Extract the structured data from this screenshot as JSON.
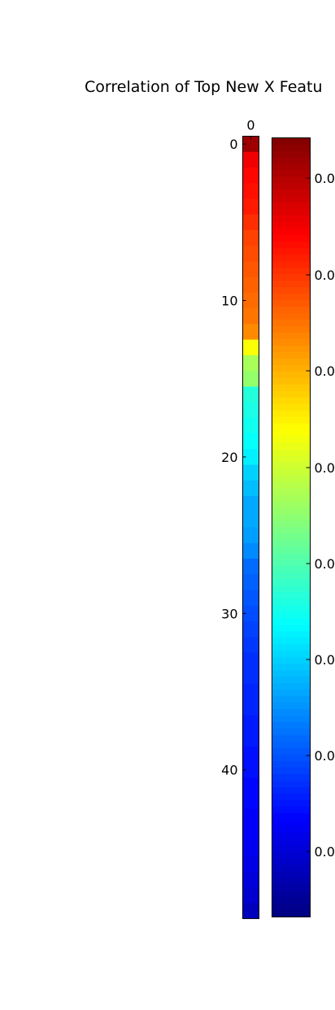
{
  "chart_data": {
    "type": "heatmap",
    "title": "Correlation of Top New X Featu",
    "x_tick_labels": [
      "0"
    ],
    "y_tick_values": [
      0,
      10,
      20,
      30,
      40
    ],
    "y_tick_labels": [
      "0",
      "10",
      "20",
      "30",
      "40"
    ],
    "ylim": [
      0,
      49
    ],
    "colormap": "jet",
    "cell_levels": [
      0.97,
      0.89,
      0.87,
      0.86,
      0.85,
      0.83,
      0.81,
      0.8,
      0.79,
      0.78,
      0.77,
      0.76,
      0.74,
      0.62,
      0.54,
      0.52,
      0.41,
      0.4,
      0.39,
      0.38,
      0.36,
      0.33,
      0.31,
      0.29,
      0.29,
      0.28,
      0.26,
      0.23,
      0.22,
      0.21,
      0.2,
      0.19,
      0.18,
      0.17,
      0.17,
      0.16,
      0.16,
      0.15,
      0.15,
      0.14,
      0.14,
      0.13,
      0.13,
      0.12,
      0.12,
      0.11,
      0.1,
      0.09,
      0.08,
      0.06
    ],
    "colorbar": {
      "tick_labels": [
        "0.0",
        "0.0",
        "0.0",
        "0.0",
        "0.0",
        "0.0",
        "0.0",
        "0.0"
      ]
    }
  }
}
